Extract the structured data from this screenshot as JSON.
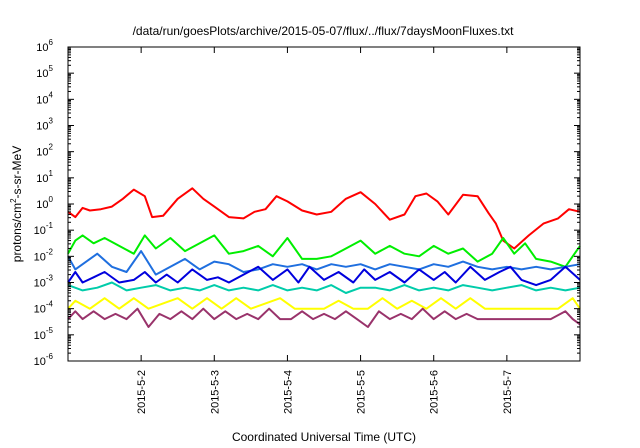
{
  "chart_data": {
    "type": "line",
    "title": "/data/run/goesPlots/archive/2015-05-07/flux/../flux/7daysMoonFluxes.txt",
    "xlabel": "Coordinated Universal Time (UTC)",
    "ylabel": "protons/cm2-s-sr-MeV",
    "ylabel_parts": {
      "base": "protons/cm",
      "sup": "2",
      "rest": "-s-sr-MeV"
    },
    "y_scale": "log",
    "ylim": [
      1e-06,
      1000000.0
    ],
    "y_ticks": [
      {
        "base": "10",
        "exp": "-6",
        "value": -6
      },
      {
        "base": "10",
        "exp": "-5",
        "value": -5
      },
      {
        "base": "10",
        "exp": "-4",
        "value": -4
      },
      {
        "base": "10",
        "exp": "-3",
        "value": -3
      },
      {
        "base": "10",
        "exp": "-2",
        "value": -2
      },
      {
        "base": "10",
        "exp": "-1",
        "value": -1
      },
      {
        "base": "10",
        "exp": "0",
        "value": 0
      },
      {
        "base": "10",
        "exp": "1",
        "value": 1
      },
      {
        "base": "10",
        "exp": "2",
        "value": 2
      },
      {
        "base": "10",
        "exp": "3",
        "value": 3
      },
      {
        "base": "10",
        "exp": "4",
        "value": 4
      },
      {
        "base": "10",
        "exp": "5",
        "value": 5
      },
      {
        "base": "10",
        "exp": "6",
        "value": 6
      }
    ],
    "xlim": [
      0,
      7
    ],
    "x_ticks": [
      {
        "label": "2015-5-2",
        "value": 1
      },
      {
        "label": "2015-5-3",
        "value": 2
      },
      {
        "label": "2015-5-4",
        "value": 3
      },
      {
        "label": "2015-5-5",
        "value": 4
      },
      {
        "label": "2015-5-6",
        "value": 5
      },
      {
        "label": "2015-5-7",
        "value": 6
      }
    ],
    "grid": false,
    "legend": "none",
    "series": [
      {
        "color": "#ff0000",
        "x": [
          0,
          0.1,
          0.2,
          0.3,
          0.45,
          0.6,
          0.75,
          0.9,
          1.05,
          1.15,
          1.3,
          1.5,
          1.7,
          1.85,
          2.0,
          2.2,
          2.4,
          2.55,
          2.7,
          2.85,
          3.0,
          3.2,
          3.4,
          3.6,
          3.8,
          4.0,
          4.2,
          4.4,
          4.6,
          4.75,
          4.9,
          5.05,
          5.2,
          5.4,
          5.6,
          5.75,
          5.85,
          5.95,
          6.1,
          6.3,
          6.5,
          6.7,
          6.85,
          7.0
        ],
        "y": [
          -0.3,
          -0.5,
          -0.15,
          -0.25,
          -0.2,
          -0.1,
          0.2,
          0.55,
          0.3,
          -0.5,
          -0.45,
          0.2,
          0.6,
          0.2,
          -0.1,
          -0.5,
          -0.55,
          -0.3,
          -0.2,
          0.3,
          0.1,
          -0.25,
          -0.4,
          -0.3,
          0.2,
          0.45,
          0.0,
          -0.6,
          -0.4,
          0.3,
          0.4,
          0.1,
          -0.4,
          0.35,
          0.3,
          -0.35,
          -0.75,
          -1.4,
          -1.7,
          -1.2,
          -0.75,
          -0.55,
          -0.2,
          -0.3
        ]
      },
      {
        "color": "#00ee00",
        "x": [
          0,
          0.1,
          0.2,
          0.35,
          0.5,
          0.7,
          0.9,
          1.05,
          1.2,
          1.4,
          1.6,
          1.8,
          2.0,
          2.2,
          2.4,
          2.6,
          2.8,
          3.0,
          3.2,
          3.4,
          3.6,
          3.8,
          4.0,
          4.2,
          4.4,
          4.6,
          4.8,
          5.0,
          5.2,
          5.4,
          5.6,
          5.8,
          5.95,
          6.1,
          6.25,
          6.4,
          6.6,
          6.8,
          7.0
        ],
        "y": [
          -1.9,
          -1.4,
          -1.2,
          -1.5,
          -1.3,
          -1.6,
          -1.9,
          -1.2,
          -1.7,
          -1.3,
          -1.8,
          -1.5,
          -1.2,
          -1.9,
          -1.8,
          -1.6,
          -2.0,
          -1.3,
          -2.1,
          -2.1,
          -2.0,
          -1.7,
          -1.4,
          -1.9,
          -1.6,
          -1.9,
          -2.0,
          -1.6,
          -1.9,
          -1.7,
          -2.2,
          -1.9,
          -1.3,
          -1.9,
          -1.5,
          -2.1,
          -2.2,
          -2.4,
          -1.6
        ]
      },
      {
        "color": "#1f6fdf",
        "x": [
          0,
          0.1,
          0.25,
          0.4,
          0.6,
          0.8,
          1.0,
          1.2,
          1.4,
          1.6,
          1.8,
          2.0,
          2.2,
          2.4,
          2.6,
          2.8,
          3.0,
          3.2,
          3.4,
          3.6,
          3.8,
          4.0,
          4.2,
          4.4,
          4.6,
          4.8,
          5.0,
          5.2,
          5.4,
          5.6,
          5.8,
          6.0,
          6.2,
          6.4,
          6.6,
          6.8,
          7.0
        ],
        "y": [
          -2.0,
          -2.5,
          -2.2,
          -1.9,
          -2.4,
          -2.6,
          -1.8,
          -2.7,
          -2.4,
          -2.1,
          -2.5,
          -2.2,
          -2.3,
          -2.6,
          -2.5,
          -2.3,
          -2.4,
          -2.3,
          -2.5,
          -2.3,
          -2.4,
          -2.3,
          -2.5,
          -2.3,
          -2.4,
          -2.5,
          -2.3,
          -2.4,
          -2.2,
          -2.4,
          -2.5,
          -2.4,
          -2.5,
          -2.4,
          -2.5,
          -2.4,
          -2.3
        ]
      },
      {
        "color": "#0000dd",
        "x": [
          0,
          0.1,
          0.2,
          0.35,
          0.5,
          0.7,
          0.9,
          1.05,
          1.2,
          1.35,
          1.5,
          1.7,
          1.9,
          2.05,
          2.2,
          2.4,
          2.6,
          2.8,
          3.0,
          3.15,
          3.3,
          3.5,
          3.7,
          3.9,
          4.05,
          4.2,
          4.4,
          4.6,
          4.8,
          5.0,
          5.15,
          5.3,
          5.5,
          5.7,
          5.9,
          6.05,
          6.2,
          6.4,
          6.6,
          6.8,
          7.0
        ],
        "y": [
          -3.0,
          -2.6,
          -3.0,
          -2.8,
          -2.6,
          -3.0,
          -2.9,
          -2.6,
          -3.0,
          -2.7,
          -3.0,
          -2.5,
          -2.9,
          -2.8,
          -3.0,
          -2.7,
          -2.4,
          -2.9,
          -2.5,
          -3.0,
          -2.4,
          -2.9,
          -2.6,
          -3.0,
          -2.5,
          -2.9,
          -2.6,
          -3.0,
          -2.5,
          -2.9,
          -2.6,
          -3.0,
          -2.4,
          -2.9,
          -2.6,
          -2.4,
          -2.9,
          -3.1,
          -2.9,
          -2.4,
          -2.9
        ]
      },
      {
        "color": "#00ccaa",
        "x": [
          0,
          0.2,
          0.4,
          0.6,
          0.8,
          1.0,
          1.2,
          1.4,
          1.6,
          1.8,
          2.0,
          2.2,
          2.4,
          2.6,
          2.8,
          3.0,
          3.2,
          3.4,
          3.6,
          3.8,
          4.0,
          4.2,
          4.4,
          4.6,
          4.8,
          5.0,
          5.2,
          5.4,
          5.6,
          5.8,
          6.0,
          6.2,
          6.4,
          6.6,
          6.8,
          7.0
        ],
        "y": [
          -3.1,
          -3.3,
          -3.2,
          -3.0,
          -3.3,
          -3.2,
          -3.1,
          -3.3,
          -3.2,
          -3.3,
          -3.1,
          -3.3,
          -3.2,
          -3.3,
          -3.1,
          -3.3,
          -3.2,
          -3.3,
          -3.1,
          -3.4,
          -3.2,
          -3.2,
          -3.3,
          -3.1,
          -3.3,
          -3.2,
          -3.3,
          -3.1,
          -3.2,
          -3.3,
          -3.2,
          -3.1,
          -3.3,
          -3.2,
          -3.3,
          -3.2
        ]
      },
      {
        "color": "#ffff00",
        "x": [
          0,
          0.1,
          0.3,
          0.5,
          0.7,
          0.9,
          1.1,
          1.3,
          1.5,
          1.7,
          1.9,
          2.1,
          2.3,
          2.5,
          2.7,
          2.9,
          3.1,
          3.3,
          3.5,
          3.7,
          3.9,
          4.1,
          4.3,
          4.5,
          4.7,
          4.9,
          5.1,
          5.3,
          5.5,
          5.7,
          5.9,
          6.1,
          6.3,
          6.5,
          6.7,
          6.9,
          7.0
        ],
        "y": [
          -4.0,
          -3.7,
          -4.0,
          -3.6,
          -4.0,
          -3.6,
          -4.0,
          -3.8,
          -3.6,
          -4.0,
          -3.6,
          -4.0,
          -3.6,
          -4.0,
          -3.8,
          -3.6,
          -4.0,
          -4.0,
          -4.0,
          -3.7,
          -4.0,
          -4.0,
          -3.6,
          -4.0,
          -3.7,
          -4.0,
          -3.6,
          -4.0,
          -3.6,
          -4.0,
          -4.0,
          -4.0,
          -4.0,
          -4.0,
          -4.0,
          -3.6,
          -4.0
        ]
      },
      {
        "color": "#99336b",
        "x": [
          0,
          0.1,
          0.2,
          0.35,
          0.5,
          0.65,
          0.8,
          0.95,
          1.1,
          1.25,
          1.4,
          1.55,
          1.7,
          1.85,
          2.0,
          2.15,
          2.3,
          2.45,
          2.6,
          2.75,
          2.9,
          3.05,
          3.2,
          3.35,
          3.5,
          3.65,
          3.8,
          3.95,
          4.1,
          4.25,
          4.4,
          4.55,
          4.7,
          4.85,
          5.0,
          5.15,
          5.3,
          5.45,
          5.6,
          5.8,
          6.0,
          6.2,
          6.4,
          6.6,
          6.8,
          6.9,
          7.0
        ],
        "y": [
          -4.4,
          -4.1,
          -4.4,
          -4.1,
          -4.4,
          -4.2,
          -4.4,
          -4.0,
          -4.7,
          -4.2,
          -4.4,
          -4.1,
          -4.4,
          -4.0,
          -4.4,
          -4.1,
          -4.4,
          -4.2,
          -4.4,
          -4.0,
          -4.4,
          -4.4,
          -4.1,
          -4.4,
          -4.2,
          -4.4,
          -4.1,
          -4.4,
          -4.7,
          -4.1,
          -4.4,
          -4.2,
          -4.4,
          -4.0,
          -4.4,
          -4.1,
          -4.4,
          -4.2,
          -4.4,
          -4.4,
          -4.4,
          -4.4,
          -4.4,
          -4.4,
          -4.1,
          -4.4,
          -4.6
        ]
      }
    ]
  }
}
